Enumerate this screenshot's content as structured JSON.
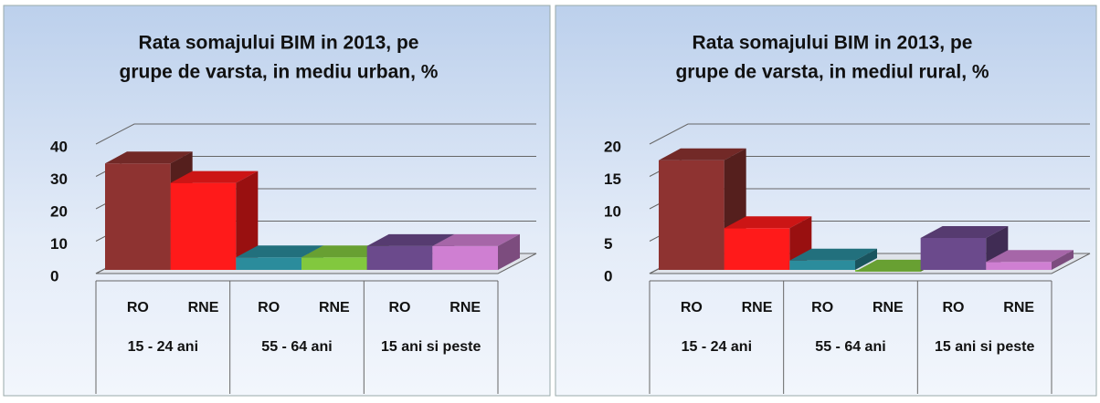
{
  "chart_data": [
    {
      "type": "bar3d",
      "title": [
        "Rata somajului BIM in 2013,  pe",
        "grupe de varsta, in mediu urban, %"
      ],
      "categories": [
        "RO",
        "RNE",
        "RO",
        "RNE",
        "RO",
        "RNE"
      ],
      "groups": [
        "15 - 24 ani",
        "55 - 64 ani",
        "15 ani si peste"
      ],
      "values": [
        34,
        28,
        5,
        5,
        8.5,
        8.5
      ],
      "colors": [
        "#8e3331",
        "#ff1a1a",
        "#2b8c9c",
        "#82c83e",
        "#6b4a8c",
        "#cf7fd2"
      ],
      "ylim": [
        0,
        40
      ],
      "yticks": [
        0,
        10,
        20,
        30,
        40
      ],
      "grid": true
    },
    {
      "type": "bar3d",
      "title": [
        "Rata somajului BIM in 2013,  pe",
        "grupe de varsta, in mediul rural, %"
      ],
      "categories": [
        "RO",
        "RNE",
        "RO",
        "RNE",
        "RO",
        "RNE"
      ],
      "groups": [
        "15 - 24 ani",
        "55 - 64 ani",
        "15 ani si peste"
      ],
      "values": [
        17.5,
        7,
        2,
        0.3,
        5.5,
        1.8
      ],
      "colors": [
        "#8e3331",
        "#ff1a1a",
        "#2b8c9c",
        "#82c83e",
        "#6b4a8c",
        "#cf7fd2"
      ],
      "ylim": [
        0,
        20
      ],
      "yticks": [
        0,
        5,
        10,
        15,
        20
      ],
      "grid": true
    }
  ]
}
